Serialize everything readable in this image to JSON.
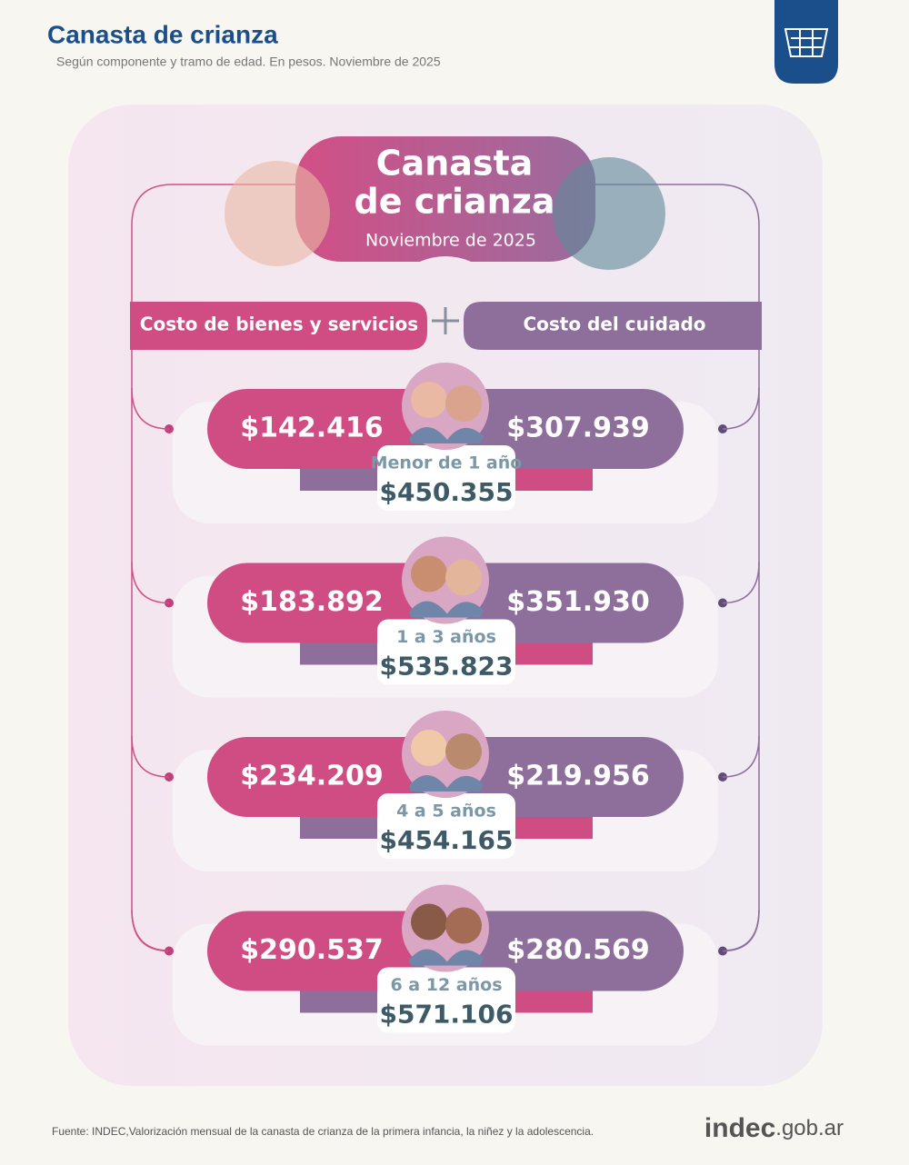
{
  "header": {
    "title": "Canasta de crianza",
    "subtitle": "Según componente y tramo de edad. En pesos. Noviembre de 2025"
  },
  "banner": {
    "title_line1": "Canasta",
    "title_line2": "de crianza",
    "date": "Noviembre de 2025"
  },
  "columns": [
    "Costo de bienes y servicios",
    "Costo del cuidado"
  ],
  "rows": [
    {
      "label": "Menor de 1 año",
      "goods": "$142.416",
      "care": "$307.939",
      "total": "$450.355"
    },
    {
      "label": "1 a 3 años",
      "goods": "$183.892",
      "care": "$351.930",
      "total": "$535.823"
    },
    {
      "label": "4 a 5 años",
      "goods": "$234.209",
      "care": "$219.956",
      "total": "$454.165"
    },
    {
      "label": "6 a 12 años",
      "goods": "$290.537",
      "care": "$280.569",
      "total": "$571.106"
    }
  ],
  "footer": {
    "source": "Fuente: INDEC,Valorización mensual de la canasta de crianza de la primera infancia, la niñez y la adolescencia.",
    "logo_main": "indec",
    "logo_domain": ".gob.ar"
  }
}
